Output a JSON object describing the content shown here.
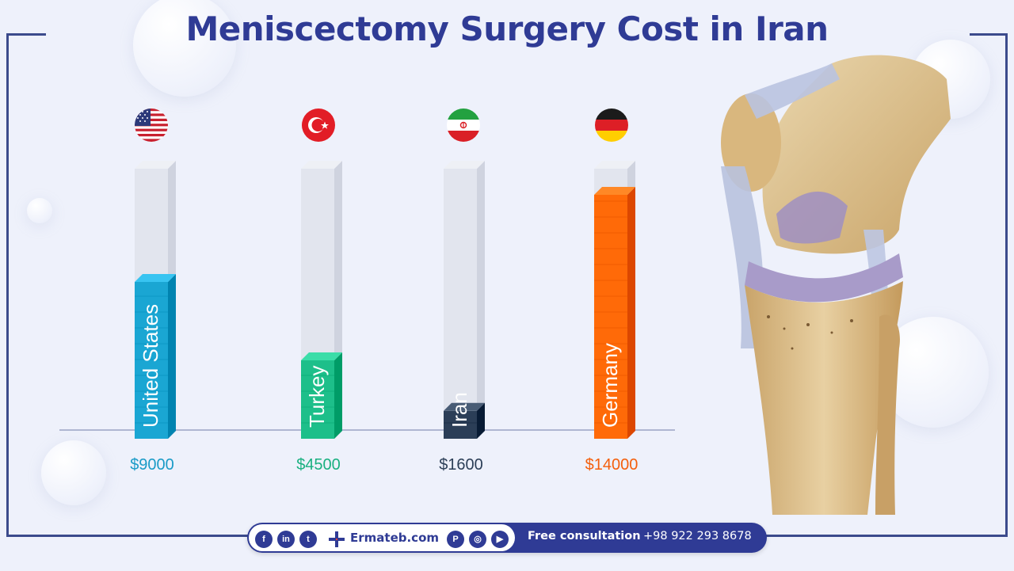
{
  "title": "Meniscectomy Surgery Cost in Iran",
  "chart_data": {
    "type": "bar",
    "orientation": "vertical",
    "title": "Meniscectomy Surgery Cost in Iran",
    "categories": [
      "United States",
      "Turkey",
      "Iran",
      "Germany"
    ],
    "values": [
      9000,
      4500,
      1600,
      14000
    ],
    "value_labels": [
      "$9000",
      "$4500",
      "$1600",
      "$14000"
    ],
    "unit": "USD",
    "ylim": [
      0,
      15500
    ],
    "colors": [
      "#1aa6d3",
      "#1dbf8a",
      "#2b3e57",
      "#ff6a08"
    ],
    "label_colors": [
      "#1a9bc7",
      "#19b080",
      "#2b3e57",
      "#f45f0c"
    ],
    "flags": [
      "us-flag-icon",
      "turkey-flag-icon",
      "iran-flag-icon",
      "germany-flag-icon"
    ],
    "grid": false,
    "legend": "none"
  },
  "footer": {
    "social_icons": [
      "facebook-icon",
      "linkedin-icon",
      "twitter-icon",
      "pinterest-icon",
      "instagram-icon",
      "youtube-icon"
    ],
    "site": "Ermateb.com",
    "consult_label": "Free consultation",
    "phone": "+98 922 293 8678"
  }
}
